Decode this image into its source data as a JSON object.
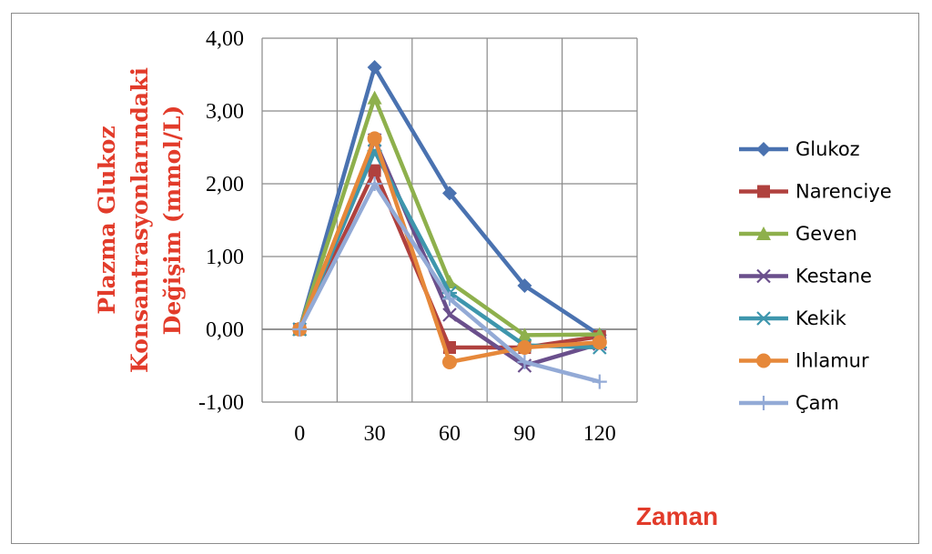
{
  "chart_data": {
    "type": "line",
    "title": "",
    "ylabel_lines": [
      "Plazma Glukoz",
      "Konsantrasyonlarındaki",
      "Değişim (mmol/L)"
    ],
    "xlabel": "Zaman",
    "categories": [
      "0",
      "30",
      "60",
      "90",
      "120"
    ],
    "ylim": [
      -1,
      4
    ],
    "yticks": [
      4,
      3,
      2,
      1,
      0,
      -1
    ],
    "ytick_labels": [
      "4,00",
      "3,00",
      "2,00",
      "1,00",
      "0,00",
      "-1,00"
    ],
    "grid": true,
    "legend_position": "right",
    "series": [
      {
        "name": "Glukoz",
        "color": "#4a72b0",
        "marker": "diamond",
        "values": [
          0.0,
          3.6,
          1.87,
          0.6,
          -0.08
        ]
      },
      {
        "name": "Narenciye",
        "color": "#b0413e",
        "marker": "square",
        "values": [
          0.0,
          2.18,
          -0.25,
          -0.25,
          -0.1
        ]
      },
      {
        "name": "Geven",
        "color": "#8eb04c",
        "marker": "triangle",
        "values": [
          0.0,
          3.18,
          0.65,
          -0.08,
          -0.07
        ]
      },
      {
        "name": "Kestane",
        "color": "#6a4f8c",
        "marker": "x",
        "values": [
          0.0,
          2.6,
          0.2,
          -0.5,
          -0.2
        ]
      },
      {
        "name": "Kekik",
        "color": "#3e96ad",
        "marker": "asterisk",
        "values": [
          0.0,
          2.45,
          0.5,
          -0.22,
          -0.25
        ]
      },
      {
        "name": "Ihlamur",
        "color": "#e6883a",
        "marker": "circle",
        "values": [
          0.0,
          2.62,
          -0.45,
          -0.25,
          -0.18
        ]
      },
      {
        "name": "Çam",
        "color": "#93aad6",
        "marker": "plus",
        "values": [
          0.0,
          2.0,
          0.42,
          -0.45,
          -0.72
        ]
      }
    ]
  }
}
